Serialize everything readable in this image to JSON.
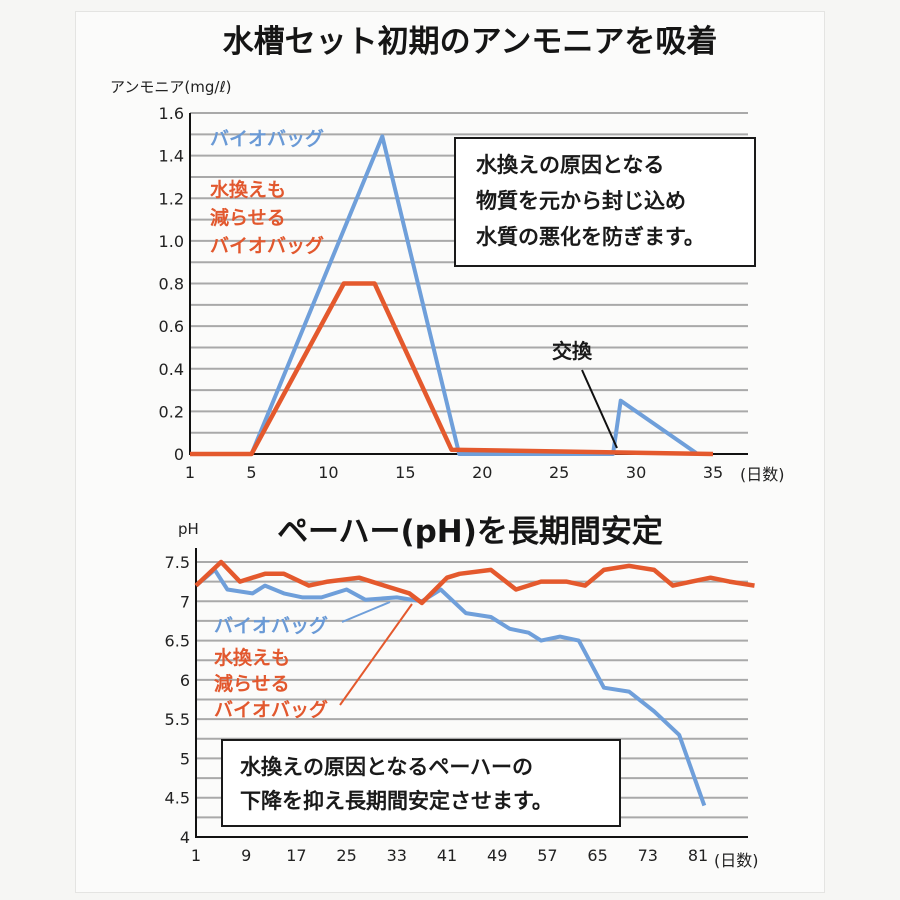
{
  "chart_data": [
    {
      "type": "line",
      "title": "水槽セット初期のアンモニアを吸着",
      "ylabel": "アンモニア(mg/ℓ)",
      "xlabel": "(日数)",
      "xlim": [
        1,
        35
      ],
      "ylim": [
        0,
        1.6
      ],
      "x_ticks": [
        1,
        5,
        10,
        15,
        20,
        25,
        30,
        35
      ],
      "y_ticks": [
        0,
        0.2,
        0.4,
        0.6,
        0.8,
        1.0,
        1.2,
        1.4,
        1.6
      ],
      "y_tick_labels": [
        "0",
        "0.2",
        "0.4",
        "0.6",
        "0.8",
        "1.0",
        "1.2",
        "1.4",
        "1.6"
      ],
      "grid": true,
      "series": [
        {
          "name": "バイオバッグ",
          "color": "#6f9fda",
          "points": [
            [
              1,
              0
            ],
            [
              5,
              0
            ],
            [
              13.5,
              1.49
            ],
            [
              18.5,
              0
            ],
            [
              28.5,
              0
            ],
            [
              29,
              0.25
            ],
            [
              34,
              0
            ]
          ]
        },
        {
          "name": "水換えも\n減らせる\nバイオバッグ",
          "color": "#e4592d",
          "points": [
            [
              1,
              0
            ],
            [
              5,
              0
            ],
            [
              11,
              0.8
            ],
            [
              13,
              0.8
            ],
            [
              18,
              0.02
            ],
            [
              35,
              0
            ]
          ]
        }
      ],
      "annotations": {
        "box_lines": [
          "水換えの原因となる",
          "物質を元から封じ込め",
          "水質の悪化を防ぎます。"
        ],
        "callout": "交換"
      }
    },
    {
      "type": "line",
      "title": "ペーハー(pH)を長期間安定",
      "ylabel": "pH",
      "xlabel": "(日数)",
      "xlim": [
        1,
        84
      ],
      "ylim": [
        4,
        7.7
      ],
      "x_ticks": [
        1,
        9,
        17,
        25,
        33,
        41,
        49,
        57,
        65,
        73,
        81
      ],
      "y_ticks": [
        4,
        4.5,
        5,
        5.5,
        6,
        6.5,
        7,
        7.5
      ],
      "grid": true,
      "series": [
        {
          "name": "バイオバッグ",
          "color": "#6f9fda",
          "points": [
            [
              1,
              7.2
            ],
            [
              4,
              7.4
            ],
            [
              6,
              7.15
            ],
            [
              10,
              7.1
            ],
            [
              12,
              7.2
            ],
            [
              15,
              7.1
            ],
            [
              18,
              7.05
            ],
            [
              21,
              7.05
            ],
            [
              25,
              7.15
            ],
            [
              28,
              7.02
            ],
            [
              33,
              7.05
            ],
            [
              37,
              7.0
            ],
            [
              40,
              7.15
            ],
            [
              44,
              6.85
            ],
            [
              48,
              6.8
            ],
            [
              51,
              6.65
            ],
            [
              54,
              6.6
            ],
            [
              56,
              6.5
            ],
            [
              59,
              6.55
            ],
            [
              62,
              6.5
            ],
            [
              66,
              5.9
            ],
            [
              70,
              5.85
            ],
            [
              74,
              5.6
            ],
            [
              78,
              5.3
            ],
            [
              82,
              4.4
            ]
          ]
        },
        {
          "name": "水換えも\n減らせる\nバイオバッグ",
          "color": "#e4592d",
          "points": [
            [
              1,
              7.2
            ],
            [
              5,
              7.5
            ],
            [
              8,
              7.25
            ],
            [
              12,
              7.35
            ],
            [
              15,
              7.35
            ],
            [
              19,
              7.2
            ],
            [
              22,
              7.25
            ],
            [
              27,
              7.3
            ],
            [
              31,
              7.2
            ],
            [
              35,
              7.1
            ],
            [
              37,
              6.98
            ],
            [
              41,
              7.3
            ],
            [
              43,
              7.35
            ],
            [
              48,
              7.4
            ],
            [
              52,
              7.15
            ],
            [
              56,
              7.25
            ],
            [
              60,
              7.25
            ],
            [
              63,
              7.2
            ],
            [
              66,
              7.4
            ],
            [
              70,
              7.45
            ],
            [
              74,
              7.4
            ],
            [
              77,
              7.2
            ],
            [
              80,
              7.25
            ],
            [
              83,
              7.3
            ],
            [
              86,
              7.25
            ],
            [
              90,
              7.2
            ]
          ]
        }
      ],
      "annotations": {
        "box_lines": [
          "水換えの原因となるペーハーの",
          "下降を抑え長期間安定させます。"
        ]
      }
    }
  ]
}
